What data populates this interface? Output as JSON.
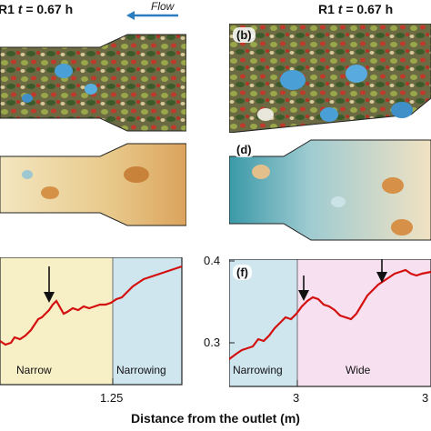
{
  "header_left": {
    "run": "R1",
    "t_var": "t",
    "time": "= 0.67 h"
  },
  "header_right": {
    "run": "R1",
    "t_var": "t",
    "time": "= 0.67 h"
  },
  "flow_label": "Flow",
  "panels": {
    "b": "(b)",
    "d": "(d)",
    "f": "(f)"
  },
  "left_plot": {
    "regions": [
      "Narrow",
      "Narrowing"
    ],
    "x_tick": "1.25",
    "colors": {
      "narrow": "#f7efc6",
      "narrowing": "#cfe6ef",
      "line": "#d40f0f"
    }
  },
  "right_plot": {
    "y_ticks": [
      "0.4",
      "0.3"
    ],
    "regions": [
      "Narrowing",
      "Wide"
    ],
    "x_ticks": [
      "3",
      "3"
    ],
    "colors": {
      "narrowing": "#cfe6ef",
      "wide": "#f7e0f0",
      "line": "#d40f0f"
    }
  },
  "xlabel": "Distance from the outlet (m)"
}
